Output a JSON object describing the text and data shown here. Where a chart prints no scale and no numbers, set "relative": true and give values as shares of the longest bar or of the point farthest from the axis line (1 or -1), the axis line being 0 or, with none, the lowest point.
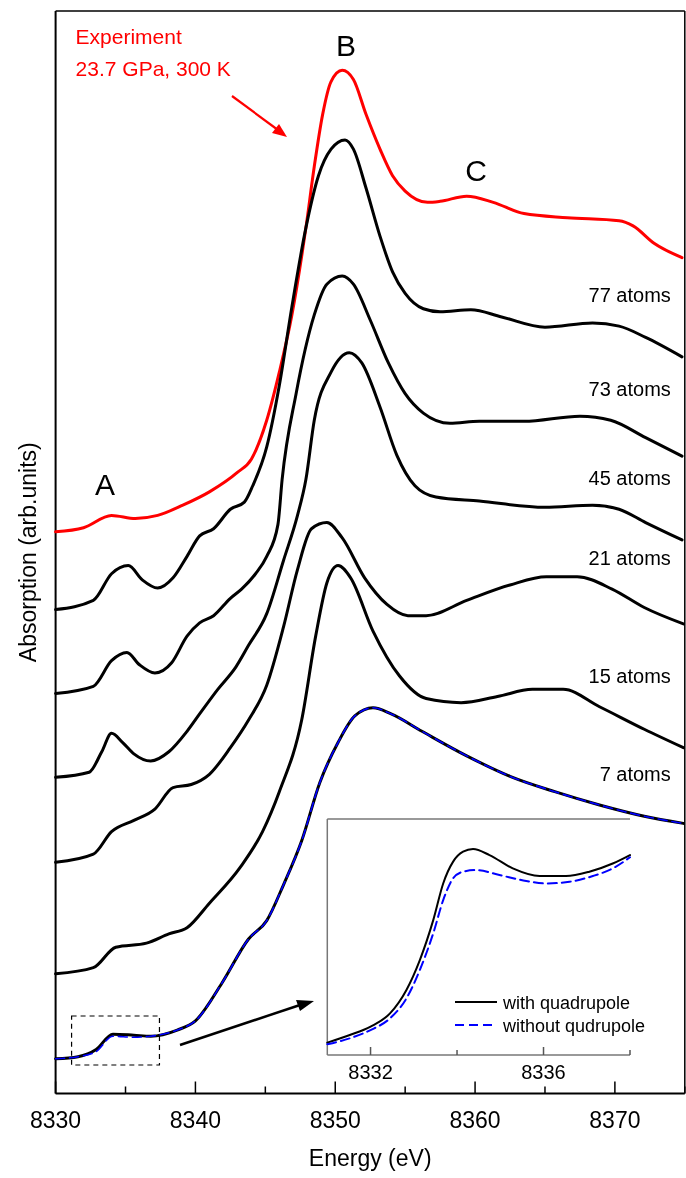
{
  "chart_data": [
    {
      "type": "line",
      "xlabel": "Energy (eV)",
      "ylabel": "Absorption (arb.units)",
      "relative": true,
      "xlim": [
        8330,
        8375
      ],
      "xticks": [
        8330,
        {
          "value": 8335,
          "label": null
        },
        8340,
        {
          "value": 8345,
          "label": null
        },
        8350,
        {
          "value": 8355,
          "label": null
        },
        8360,
        {
          "value": 8365,
          "label": null
        },
        8370,
        {
          "value": 8375,
          "label": null
        }
      ],
      "legend": false,
      "grid": false,
      "annotations": [
        "A",
        "B",
        "C",
        "23.7 GPa, 300 K"
      ],
      "series": [
        {
          "name": "Experiment",
          "color": "#ff0000",
          "line_style": "solid",
          "x": [
            8330,
            8332,
            8334,
            8335.7,
            8337.3,
            8339.1,
            8341,
            8343,
            8344,
            8345.1,
            8346,
            8346.9,
            8347.9,
            8348.5,
            8349.1,
            8349.7,
            8350.5,
            8351.3,
            8352.2,
            8353.2,
            8354.1,
            8355,
            8356.6,
            8357.5,
            8359.4,
            8361.3,
            8363.5,
            8366.6,
            8370.3,
            8371.3,
            8372.8,
            8374.8
          ],
          "values": [
            0.549,
            0.553,
            0.565,
            0.562,
            0.565,
            0.575,
            0.588,
            0.607,
            0.62,
            0.658,
            0.705,
            0.761,
            0.846,
            0.906,
            0.957,
            0.989,
            1.0,
            0.991,
            0.957,
            0.923,
            0.897,
            0.882,
            0.871,
            0.872,
            0.877,
            0.871,
            0.86,
            0.856,
            0.853,
            0.848,
            0.831,
            0.817
          ]
        },
        {
          "name": "77 atoms",
          "color": "#000000",
          "line_style": "solid",
          "x": [
            8330,
            8332.7,
            8334,
            8335.2,
            8336.2,
            8337.3,
            8338.4,
            8339.4,
            8340.3,
            8341.3,
            8342.5,
            8343.5,
            8344.1,
            8345.1,
            8346,
            8346.9,
            8347.9,
            8348.8,
            8349.7,
            8350.7,
            8351.3,
            8352.2,
            8353.2,
            8354.1,
            8355,
            8356.3,
            8357.5,
            8359.7,
            8361.9,
            8365,
            8368.4,
            8370.3,
            8372.2,
            8374.8
          ],
          "values": [
            0.473,
            0.482,
            0.508,
            0.516,
            0.502,
            0.494,
            0.504,
            0.525,
            0.545,
            0.552,
            0.571,
            0.578,
            0.594,
            0.632,
            0.692,
            0.769,
            0.846,
            0.897,
            0.923,
            0.932,
            0.923,
            0.885,
            0.838,
            0.803,
            0.782,
            0.767,
            0.764,
            0.766,
            0.759,
            0.749,
            0.753,
            0.75,
            0.739,
            0.72
          ]
        },
        {
          "name": "73 atoms",
          "color": "#000000",
          "line_style": "solid",
          "x": [
            8330,
            8332.7,
            8334,
            8335.1,
            8336,
            8337.1,
            8338.3,
            8339.4,
            8340.3,
            8341.3,
            8342.5,
            8343.3,
            8344.3,
            8345.1,
            8345.9,
            8346.2,
            8347.2,
            8348.5,
            8349.4,
            8350.5,
            8351.3,
            8352.5,
            8353.8,
            8355,
            8356.3,
            8358.2,
            8360.3,
            8363.5,
            8367.5,
            8369.7,
            8372.2,
            8374.8
          ],
          "values": [
            0.391,
            0.398,
            0.423,
            0.431,
            0.419,
            0.411,
            0.421,
            0.447,
            0.46,
            0.467,
            0.484,
            0.493,
            0.508,
            0.525,
            0.556,
            0.6,
            0.684,
            0.761,
            0.791,
            0.799,
            0.791,
            0.756,
            0.714,
            0.684,
            0.665,
            0.655,
            0.657,
            0.657,
            0.662,
            0.658,
            0.641,
            0.623
          ]
        },
        {
          "name": "45 atoms",
          "color": "#000000",
          "line_style": "solid",
          "x": [
            8330,
            8332.4,
            8333.3,
            8334,
            8334.8,
            8335.6,
            8336.8,
            8338.1,
            8339.4,
            8340.3,
            8341.6,
            8342.9,
            8343.8,
            8345.1,
            8346.3,
            8347.3,
            8347.9,
            8348.5,
            8349.7,
            8351,
            8351.9,
            8353.2,
            8354.4,
            8355.7,
            8357.2,
            8360.3,
            8365,
            8368.4,
            8370.3,
            8372.2,
            8374.8
          ],
          "values": [
            0.309,
            0.314,
            0.334,
            0.352,
            0.343,
            0.332,
            0.325,
            0.334,
            0.354,
            0.371,
            0.395,
            0.417,
            0.438,
            0.469,
            0.521,
            0.565,
            0.6,
            0.658,
            0.705,
            0.724,
            0.714,
            0.671,
            0.624,
            0.594,
            0.583,
            0.579,
            0.573,
            0.575,
            0.571,
            0.558,
            0.541
          ]
        },
        {
          "name": "21 atoms",
          "color": "#000000",
          "line_style": "solid",
          "x": [
            8330,
            8332.7,
            8334,
            8335.6,
            8337.1,
            8338.4,
            8339.7,
            8341,
            8342.5,
            8343.8,
            8345.1,
            8346.3,
            8347.3,
            8348.3,
            8349.4,
            8350.5,
            8352.1,
            8353.7,
            8355.2,
            8356.5,
            8359.4,
            8362.5,
            8365.1,
            8367.3,
            8369.8,
            8372.1,
            8374.9
          ],
          "values": [
            0.226,
            0.234,
            0.256,
            0.267,
            0.278,
            0.299,
            0.302,
            0.312,
            0.338,
            0.365,
            0.399,
            0.456,
            0.512,
            0.552,
            0.558,
            0.543,
            0.504,
            0.478,
            0.467,
            0.467,
            0.482,
            0.497,
            0.505,
            0.505,
            0.493,
            0.475,
            0.459
          ]
        },
        {
          "name": "15 atoms",
          "color": "#000000",
          "line_style": "solid",
          "x": [
            8330,
            8332.7,
            8334.3,
            8336.5,
            8338.1,
            8339.4,
            8341,
            8343.2,
            8344.8,
            8346,
            8347.6,
            8348.6,
            8349.4,
            8350.2,
            8351.1,
            8352.7,
            8354.6,
            8356.5,
            8359,
            8361.6,
            8364.1,
            8366.3,
            8368.9,
            8372.1,
            8374.9
          ],
          "values": [
            0.117,
            0.123,
            0.143,
            0.147,
            0.156,
            0.162,
            0.186,
            0.221,
            0.256,
            0.295,
            0.365,
            0.447,
            0.499,
            0.516,
            0.504,
            0.452,
            0.408,
            0.386,
            0.382,
            0.388,
            0.395,
            0.395,
            0.378,
            0.356,
            0.338
          ]
        },
        {
          "name": "7 atoms",
          "color": "#000000",
          "line_style": "solid",
          "x": [
            8330,
            8331.6,
            8332.9,
            8334.1,
            8335.6,
            8336.8,
            8338.7,
            8340,
            8341.9,
            8343.8,
            8345.1,
            8346.3,
            8347.6,
            8348.9,
            8350.2,
            8351.4,
            8352.7,
            8354,
            8356.2,
            8359.4,
            8362.5,
            8365.7,
            8368.9,
            8372.1,
            8374.9
          ],
          "values": [
            0.034,
            0.036,
            0.043,
            0.058,
            0.057,
            0.056,
            0.062,
            0.071,
            0.108,
            0.151,
            0.169,
            0.204,
            0.247,
            0.304,
            0.343,
            0.369,
            0.377,
            0.371,
            0.354,
            0.33,
            0.31,
            0.295,
            0.282,
            0.271,
            0.264
          ]
        },
        {
          "color": "#0000ff",
          "line_style": "dashed",
          "x": [
            8330,
            8331.6,
            8332.9,
            8334.1,
            8335.6,
            8336.8,
            8338.7,
            8340,
            8341.9,
            8343.8,
            8345.1,
            8346.3,
            8347.6,
            8348.9,
            8350.2,
            8351.4,
            8352.7,
            8354,
            8356.2,
            8359.4,
            8362.5,
            8365.7,
            8368.9,
            8372.1,
            8374.9
          ],
          "values": [
            0.034,
            0.036,
            0.041,
            0.056,
            0.055,
            0.056,
            0.062,
            0.071,
            0.108,
            0.151,
            0.169,
            0.204,
            0.247,
            0.304,
            0.343,
            0.369,
            0.377,
            0.371,
            0.354,
            0.33,
            0.31,
            0.295,
            0.282,
            0.271,
            0.264
          ]
        }
      ]
    },
    {
      "type": "line",
      "relative": true,
      "xlim": [
        8331,
        8338
      ],
      "xticks": [
        8332,
        {
          "value": 8334,
          "label": null
        },
        8336,
        {
          "value": 8338,
          "label": null
        }
      ],
      "legend": "bottom right",
      "grid": false,
      "series": [
        {
          "name": "with quadrupole",
          "color": "#000000",
          "line_style": "solid",
          "x": [
            8331,
            8331.52,
            8332,
            8332.45,
            8332.83,
            8333.14,
            8333.45,
            8333.68,
            8333.91,
            8334.14,
            8334.37,
            8334.75,
            8335.29,
            8335.91,
            8336.52,
            8337.06,
            8337.6,
            8338
          ],
          "values": [
            0.06,
            0.097,
            0.138,
            0.202,
            0.316,
            0.461,
            0.655,
            0.833,
            0.939,
            0.987,
            1.0,
            0.971,
            0.906,
            0.869,
            0.869,
            0.89,
            0.93,
            0.971
          ]
        },
        {
          "name": "without qudrupole",
          "color": "#0000ff",
          "line_style": "dashed",
          "x": [
            8331,
            8331.52,
            8332,
            8332.45,
            8332.83,
            8333.14,
            8333.45,
            8333.68,
            8333.91,
            8334.14,
            8334.45,
            8334.98,
            8335.6,
            8336.06,
            8336.6,
            8337.14,
            8337.6,
            8338
          ],
          "values": [
            0.052,
            0.081,
            0.121,
            0.178,
            0.275,
            0.413,
            0.591,
            0.752,
            0.858,
            0.89,
            0.898,
            0.874,
            0.845,
            0.833,
            0.841,
            0.869,
            0.906,
            0.96
          ]
        }
      ]
    }
  ]
}
